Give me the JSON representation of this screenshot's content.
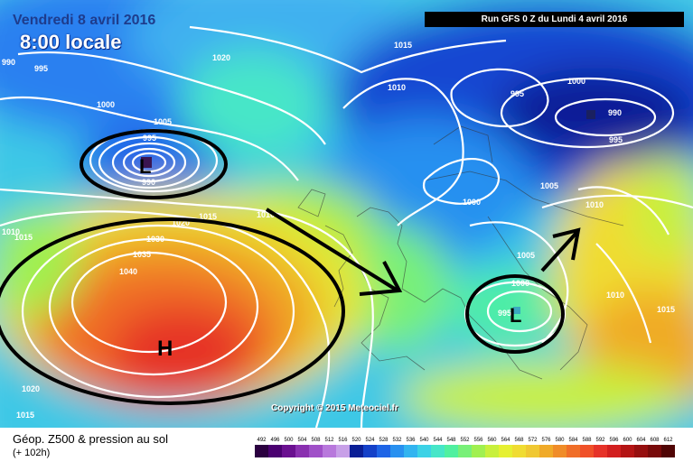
{
  "header": {
    "valid_date": "Vendredi 8 avril 2016",
    "valid_time": "8:00 locale",
    "run_title": "Run GFS 0 Z du Lundi 4 avril 2016"
  },
  "footer": {
    "field_label": "Géop. Z500 & pression au sol",
    "forecast_hour": "(+ 102h)",
    "copyright": "Copyright © 2015 Meteociel.fr"
  },
  "colors": {
    "isobar": "#ffffff",
    "annotation": "#000000",
    "land_border": "#333333"
  },
  "pressure_centers": [
    {
      "id": "low-iceland",
      "symbol": "L",
      "pressure": "990"
    },
    {
      "id": "high-atlantic",
      "symbol": "H",
      "pressure": "1040"
    },
    {
      "id": "low-italy",
      "symbol": "L",
      "pressure": "995"
    },
    {
      "id": "low-scandinavia",
      "symbol": "",
      "pressure": "990"
    }
  ],
  "isobar_labels": [
    "990",
    "995",
    "1000",
    "1005",
    "1010",
    "1015",
    "1020",
    "1030",
    "1035",
    "1040"
  ],
  "colorbar": {
    "ticks": [
      "492",
      "496",
      "500",
      "504",
      "508",
      "512",
      "516",
      "520",
      "524",
      "528",
      "532",
      "536",
      "540",
      "544",
      "548",
      "552",
      "556",
      "560",
      "564",
      "568",
      "572",
      "576",
      "580",
      "584",
      "588",
      "592",
      "596",
      "600",
      "604",
      "608",
      "612"
    ],
    "colors": [
      "#2b0040",
      "#4a0070",
      "#6a1090",
      "#8a30b0",
      "#a050c8",
      "#b878dc",
      "#c8a0e8",
      "#0a1e96",
      "#1440c8",
      "#1e64e6",
      "#2890f0",
      "#32b4f0",
      "#3cd2e6",
      "#46e6c8",
      "#50f0a0",
      "#78f078",
      "#a0f050",
      "#c8f03c",
      "#e6f032",
      "#f0dc32",
      "#f0c832",
      "#f0aa28",
      "#f08c28",
      "#f06e28",
      "#f05028",
      "#e63228",
      "#d21e1e",
      "#b41414",
      "#960f0f",
      "#780a0a",
      "#500505"
    ]
  }
}
